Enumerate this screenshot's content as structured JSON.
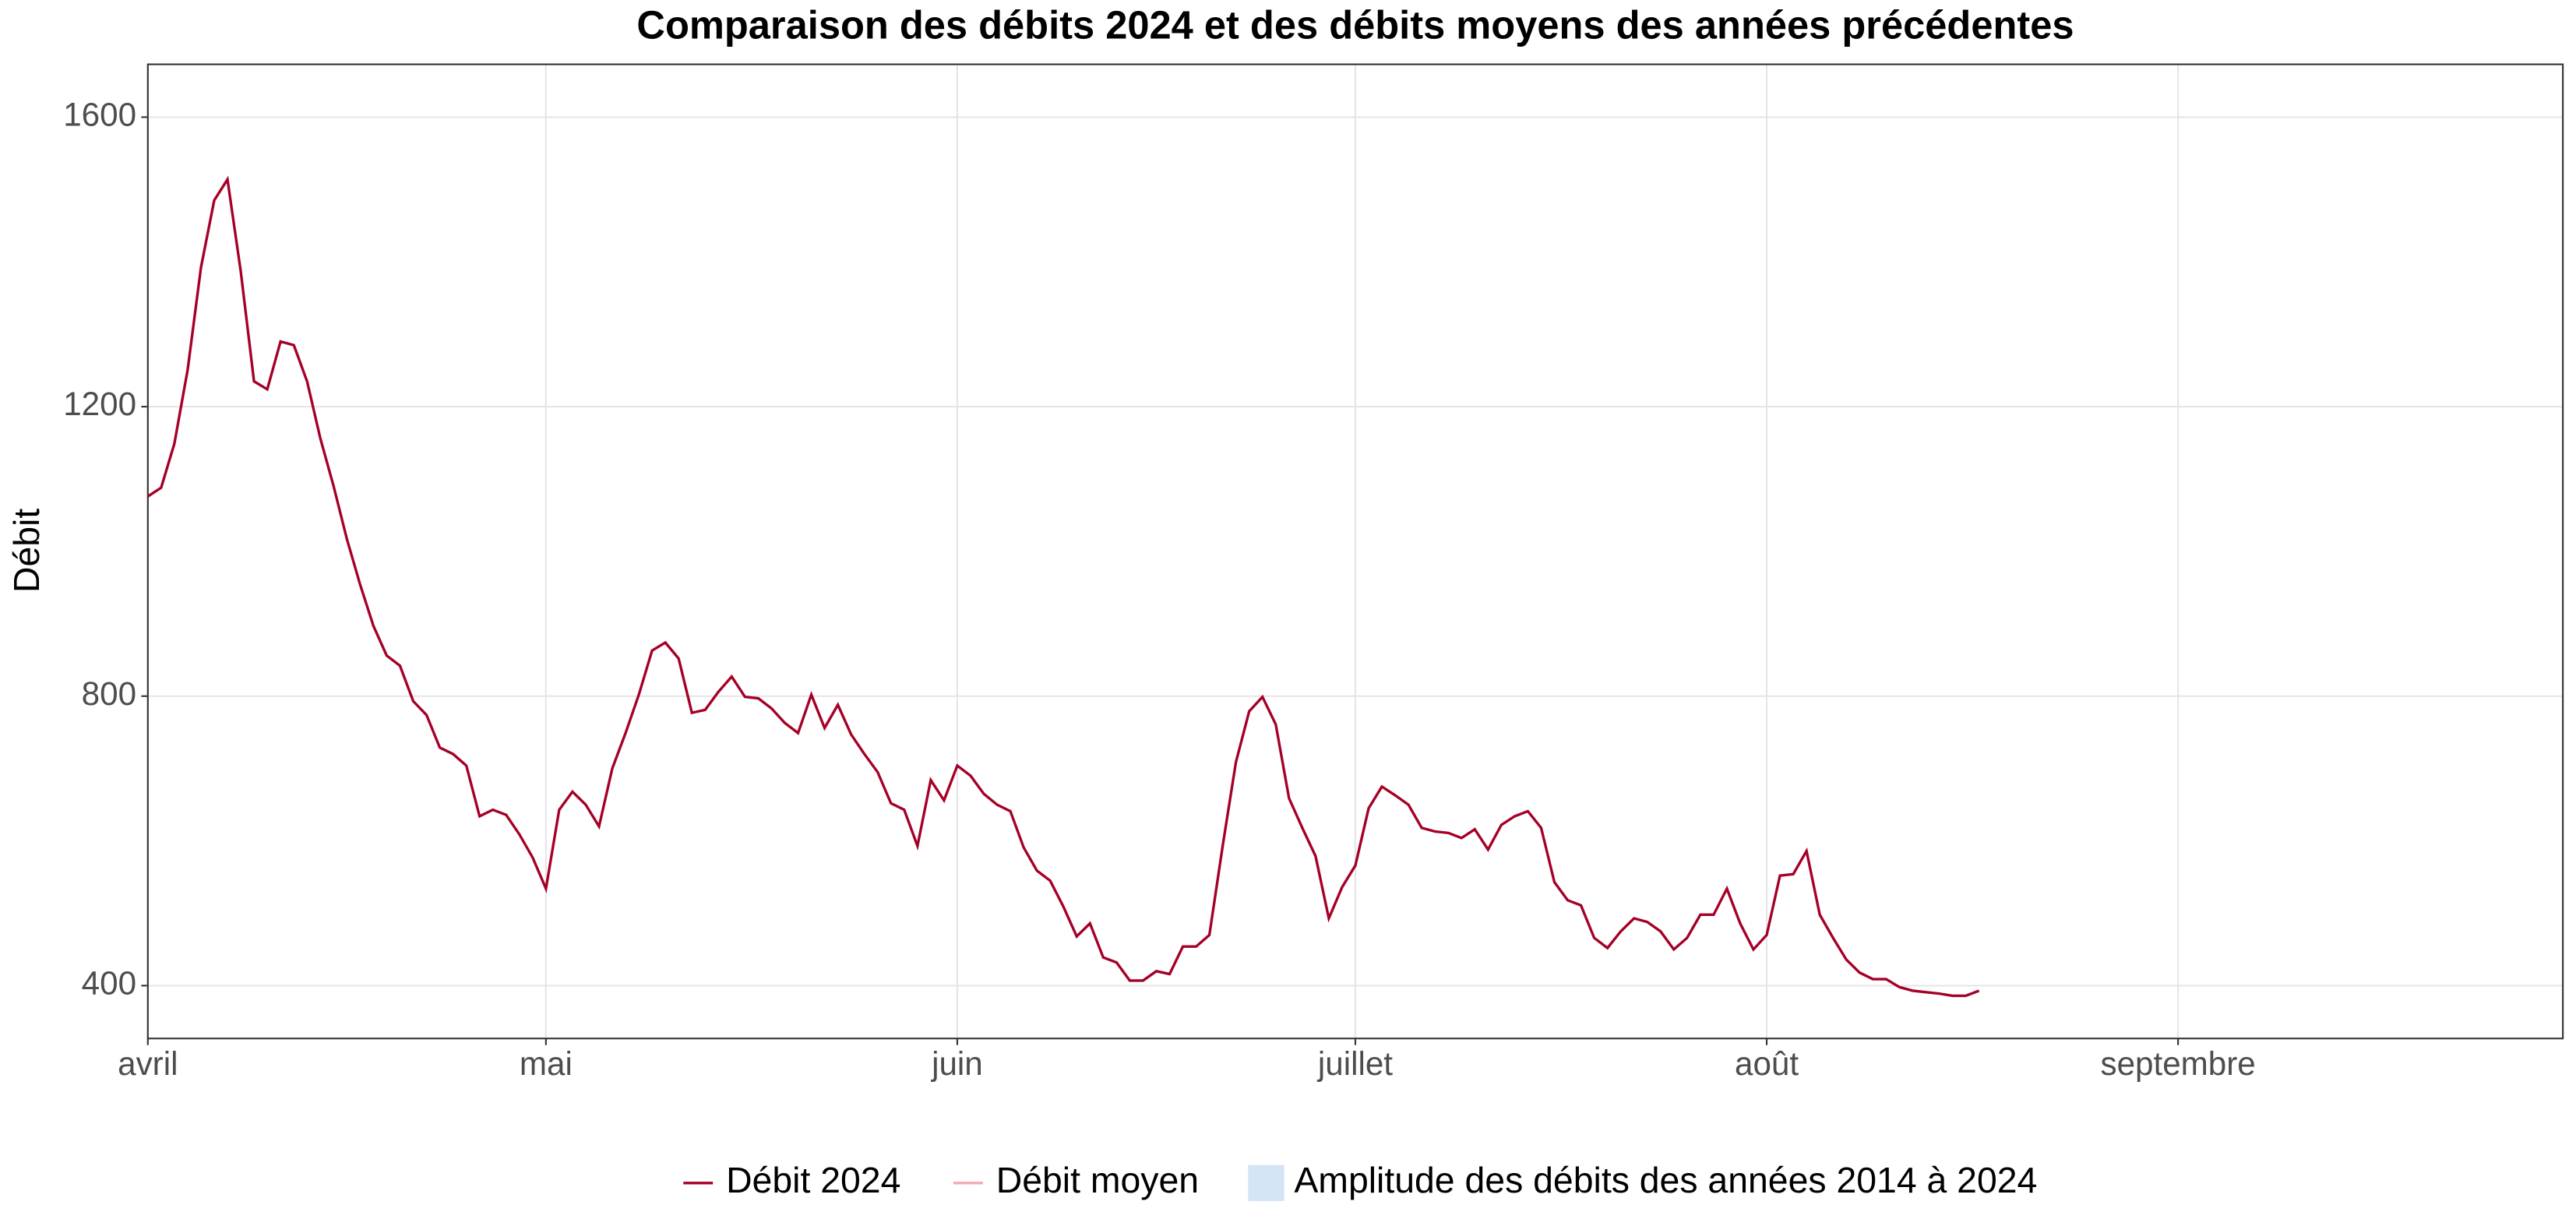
{
  "chart_data": {
    "type": "line",
    "title": "Comparaison des débits 2024 et des débits moyens des années précédentes",
    "y_label": "Débit",
    "x": [
      0,
      1,
      2,
      3,
      4,
      5,
      6,
      7,
      8,
      9,
      10,
      11,
      12,
      13,
      14,
      15,
      16,
      17,
      18,
      19,
      20,
      21,
      22,
      23,
      24,
      25,
      26,
      27,
      28,
      29,
      30,
      31,
      32,
      33,
      34,
      35,
      36,
      37,
      38,
      39,
      40,
      41,
      42,
      43,
      44,
      45,
      46,
      47,
      48,
      49,
      50,
      51,
      52,
      53,
      54,
      55,
      56,
      57,
      58,
      59,
      60,
      61,
      62,
      63,
      64,
      65,
      66,
      67,
      68,
      69,
      70,
      71,
      72,
      73,
      74,
      75,
      76,
      77,
      78,
      79,
      80,
      81,
      82,
      83,
      84,
      85,
      86,
      87,
      88,
      89,
      90,
      91,
      92,
      93,
      94,
      95,
      96,
      97,
      98,
      99,
      100,
      101,
      102,
      103,
      104,
      105,
      106,
      107,
      108,
      109,
      110,
      111,
      112,
      113,
      114,
      115,
      116,
      117,
      118,
      119,
      120,
      121,
      122,
      123,
      124,
      125,
      126,
      127,
      128,
      129,
      130,
      131,
      132,
      133,
      134,
      135,
      136,
      137,
      138
    ],
    "series": [
      {
        "name": "Débit 2024",
        "color": "#a50026",
        "values": [
          1076,
          1088,
          1149,
          1251,
          1392,
          1485,
          1514,
          1387,
          1235,
          1224,
          1290,
          1285,
          1235,
          1156,
          1090,
          1017,
          954,
          897,
          856,
          842,
          793,
          774,
          729,
          720,
          704,
          634,
          643,
          636,
          609,
          577,
          534,
          643,
          668,
          650,
          620,
          700,
          749,
          802,
          863,
          874,
          852,
          777,
          781,
          806,
          827,
          799,
          797,
          783,
          763,
          749,
          802,
          756,
          788,
          747,
          720,
          695,
          652,
          643,
          593,
          684,
          656,
          704,
          690,
          665,
          650,
          641,
          591,
          559,
          545,
          509,
          468,
          486,
          439,
          432,
          407,
          407,
          420,
          416,
          454,
          454,
          470,
          593,
          709,
          779,
          799,
          761,
          659,
          618,
          579,
          493,
          536,
          566,
          645,
          675,
          663,
          650,
          618,
          613,
          611,
          604,
          616,
          588,
          622,
          634,
          641,
          618,
          543,
          518,
          511,
          466,
          452,
          475,
          493,
          488,
          475,
          450,
          466,
          498,
          498,
          534,
          486,
          450,
          470,
          552,
          554,
          586,
          498,
          466,
          436,
          418,
          409,
          409,
          398,
          393,
          391,
          389,
          386,
          386,
          393
        ]
      }
    ],
    "legend": [
      {
        "name": "Débit moyen",
        "color": "#f7a8b0",
        "kind": "line"
      },
      {
        "name": "Amplitude des débits des années 2014 à 2024",
        "color": "#d4e6f5",
        "kind": "area"
      }
    ],
    "xlim": [
      0,
      182
    ],
    "xticks": [
      {
        "value": 0,
        "label": "avril"
      },
      {
        "value": 30,
        "label": "mai"
      },
      {
        "value": 61,
        "label": "juin"
      },
      {
        "value": 91,
        "label": "juillet"
      },
      {
        "value": 122,
        "label": "août"
      },
      {
        "value": 153,
        "label": "septembre"
      }
    ],
    "ylim": [
      327,
      1673
    ],
    "yticks": [
      400,
      800,
      1200,
      1600
    ],
    "grid": true
  }
}
